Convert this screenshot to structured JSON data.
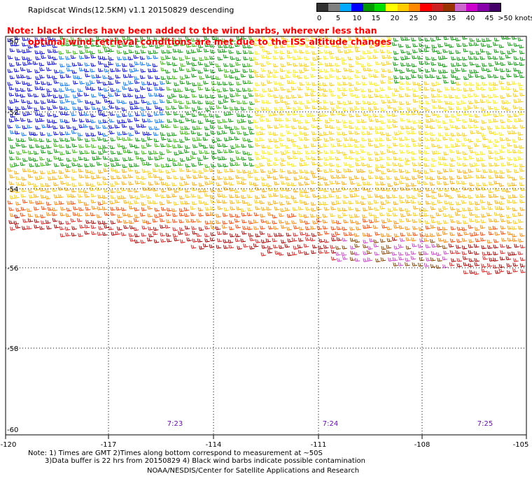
{
  "title": "Rapidscat Winds(12.5KM) v1.1 20150829 descending",
  "note_lines": [
    "Note: black circles have been added to the wind barbs, wherever less than",
    "optimal wind retrieval conditions are met due to the ISS altitude changes"
  ],
  "color_scale": {
    "labels": [
      "0",
      "5",
      "10",
      "15",
      "20",
      "25",
      "30",
      "35",
      "40",
      "45",
      ">50 knots"
    ],
    "colors": [
      "#303030",
      "#808080",
      "#00aaff",
      "#0000ff",
      "#009900",
      "#00dd00",
      "#ffff00",
      "#ffcc00",
      "#ff8800",
      "#ff0000",
      "#cc2222",
      "#993300",
      "#cc66cc",
      "#cc00cc",
      "#8800aa",
      "#440066"
    ]
  },
  "latitude_labels": [
    "-50",
    "-52",
    "-54",
    "-56",
    "-58",
    "-60"
  ],
  "longitude_labels": [
    "-120",
    "-117",
    "-114",
    "-111",
    "-108",
    "-105"
  ],
  "time_labels": [
    "7:23",
    "7:24",
    "7:25"
  ],
  "footnote_lines": [
    "Note: 1) Times are GMT 2)Times along bottom correspond to measurement at ~50S",
    "3)Data buffer is 22 hrs from 20150829 4) Black wind barbs indicate possible contamination"
  ],
  "credit": "NOAA/NESDIS/Center for Satellite Applications and Research",
  "colors": {
    "note_text": "#ff0000",
    "time_text": "#6a0dad",
    "grid": "#000000"
  }
}
